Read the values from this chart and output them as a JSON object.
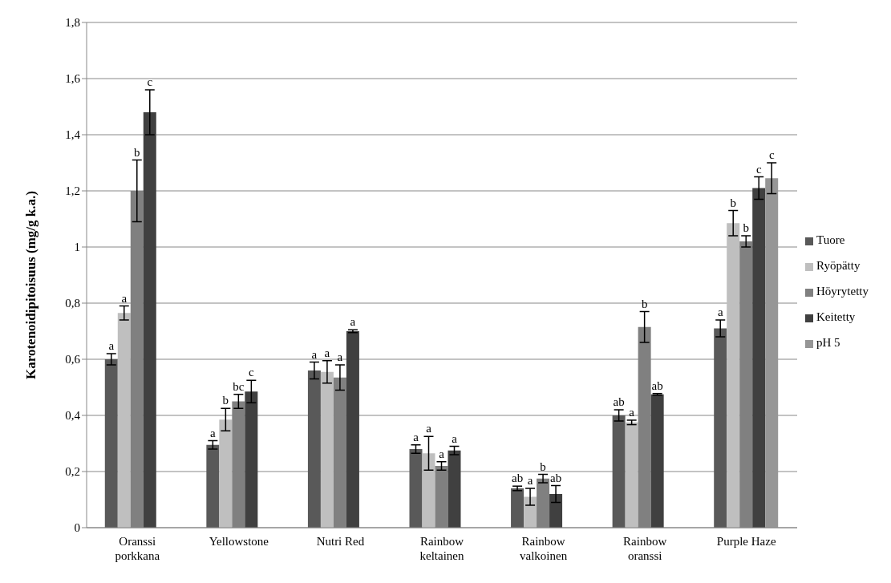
{
  "chart_data": {
    "type": "bar",
    "ylabel": "Karotenoidipitoisuus (mg/g k.a.)",
    "categories": [
      "Oranssi porkkana",
      "Yellowstone",
      "Nutri Red",
      "Rainbow keltainen",
      "Rainbow valkoinen",
      "Rainbow oranssi",
      "Purple Haze"
    ],
    "series": [
      {
        "name": "Tuore",
        "color": "#595959",
        "values": [
          0.6,
          0.295,
          0.56,
          0.28,
          0.14,
          0.4,
          0.71
        ],
        "errors": [
          0.02,
          0.015,
          0.03,
          0.015,
          0.008,
          0.02,
          0.03
        ],
        "value_labels": [
          "a",
          "a",
          "a",
          "a",
          "ab",
          "ab",
          "a"
        ]
      },
      {
        "name": "Ryöpätty",
        "color": "#bfbfbf",
        "values": [
          0.765,
          0.385,
          0.555,
          0.265,
          0.11,
          0.375,
          1.085
        ],
        "errors": [
          0.025,
          0.04,
          0.04,
          0.06,
          0.03,
          0.008,
          0.045
        ],
        "value_labels": [
          "a",
          "b",
          "a",
          "a",
          "a",
          "a",
          "b"
        ]
      },
      {
        "name": "Höyrytetty",
        "color": "#808080",
        "values": [
          1.2,
          0.45,
          0.535,
          0.22,
          0.175,
          0.715,
          1.02
        ],
        "errors": [
          0.11,
          0.025,
          0.045,
          0.015,
          0.015,
          0.055,
          0.02
        ],
        "value_labels": [
          "b",
          "bc",
          "a",
          "a",
          "b",
          "b",
          "b"
        ]
      },
      {
        "name": "Keitetty",
        "color": "#404040",
        "values": [
          1.48,
          0.485,
          0.7,
          0.275,
          0.12,
          0.475,
          1.21
        ],
        "errors": [
          0.08,
          0.04,
          0.005,
          0.015,
          0.03,
          0.003,
          0.04
        ],
        "value_labels": [
          "c",
          "c",
          "a",
          "a",
          "ab",
          "ab",
          "c"
        ]
      },
      {
        "name": "pH 5",
        "color": "#969696",
        "values": [
          null,
          null,
          null,
          null,
          null,
          null,
          1.245
        ],
        "errors": [
          null,
          null,
          null,
          null,
          null,
          null,
          0.055
        ],
        "value_labels": [
          null,
          null,
          null,
          null,
          null,
          null,
          "c"
        ]
      }
    ],
    "ylim": [
      0,
      1.8
    ],
    "yticks": [
      0,
      {
        "value": 0.2,
        "label": "0,2"
      },
      {
        "value": 0.4,
        "label": "0,4"
      },
      {
        "value": 0.6,
        "label": "0,6"
      },
      {
        "value": 0.8,
        "label": "0,8"
      },
      1,
      {
        "value": 1.2,
        "label": "1,2"
      },
      {
        "value": 1.4,
        "label": "1,4"
      },
      {
        "value": 1.6,
        "label": "1,6"
      },
      {
        "value": 1.8,
        "label": "1,8"
      }
    ],
    "grid": "y",
    "legend": "right"
  }
}
